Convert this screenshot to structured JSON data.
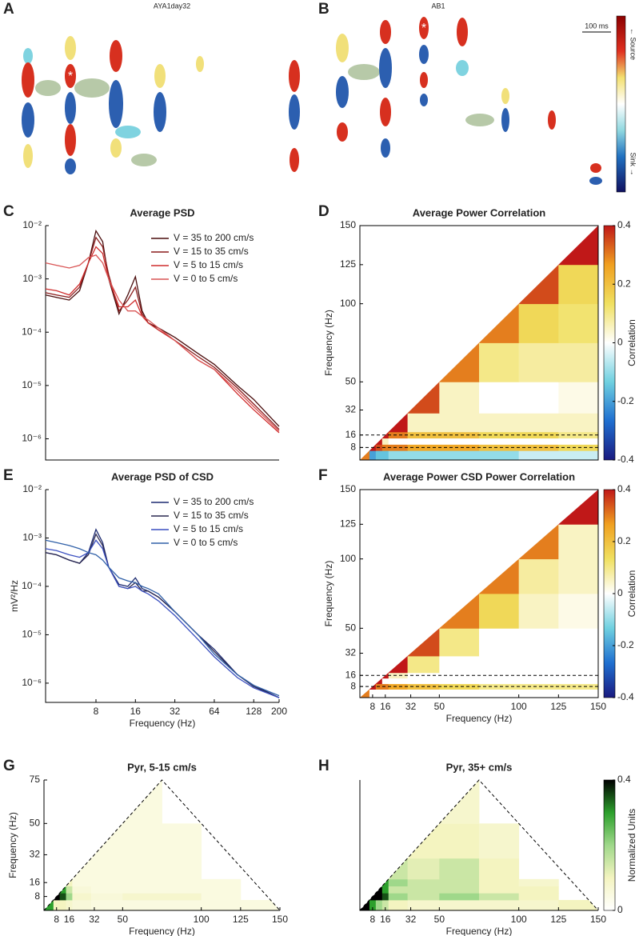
{
  "chart_data": [
    {
      "type": "csd_image",
      "panel": "A",
      "title": "AYA1day32",
      "marker": "*"
    },
    {
      "type": "csd_image",
      "panel": "B",
      "title": "AB1",
      "marker": "*",
      "scale_label": "100 ms",
      "colorbar_labels": [
        "← Source",
        "Sink →"
      ]
    },
    {
      "type": "line",
      "panel": "C",
      "title": "Average PSD",
      "xscale": "log",
      "yscale": "log",
      "xlim": [
        3.3,
        200
      ],
      "ylim": [
        4e-07,
        0.01
      ],
      "yticks": [
        {
          "value": 0.01,
          "label": "10⁻²"
        },
        {
          "value": 0.001,
          "label": "10⁻³"
        },
        {
          "value": 0.0001,
          "label": "10⁻⁴"
        },
        {
          "value": 1e-05,
          "label": "10⁻⁵"
        },
        {
          "value": 1e-06,
          "label": "10⁻⁶"
        }
      ],
      "legend": "upper right",
      "x": [
        3.3,
        4,
        5,
        6,
        7,
        8,
        9,
        10,
        12,
        14,
        16,
        18,
        20,
        24,
        32,
        48,
        64,
        96,
        128,
        200
      ],
      "series": [
        {
          "name": "V = 35 to 200 cm/s",
          "color": "#4a0d0d",
          "values": [
            0.0005,
            0.00045,
            0.0004,
            0.0006,
            0.002,
            0.008,
            0.005,
            0.001,
            0.00022,
            0.0005,
            0.0011,
            0.00025,
            0.00015,
            0.00012,
            8e-05,
            4e-05,
            2.5e-05,
            1e-05,
            5.5e-06,
            1.7e-06
          ]
        },
        {
          "name": "V = 15 to 35 cm/s",
          "color": "#8a1c1c",
          "values": [
            0.00055,
            0.0005,
            0.00045,
            0.0007,
            0.002,
            0.006,
            0.004,
            0.0012,
            0.00025,
            0.0004,
            0.0007,
            0.00022,
            0.00015,
            0.00011,
            7e-05,
            3.5e-05,
            2.2e-05,
            9e-06,
            4.5e-06,
            1.5e-06
          ]
        },
        {
          "name": "V = 5 to 15 cm/s",
          "color": "#cf2d2d",
          "values": [
            0.00065,
            0.0006,
            0.0005,
            0.0008,
            0.002,
            0.004,
            0.003,
            0.001,
            0.0003,
            0.0003,
            0.0004,
            0.0002,
            0.00015,
            0.00011,
            7e-05,
            3e-05,
            2e-05,
            7e-06,
            3.5e-06,
            1.3e-06
          ]
        },
        {
          "name": "V = 0 to 5 cm/s",
          "color": "#d95454",
          "values": [
            0.002,
            0.0018,
            0.0016,
            0.0018,
            0.0025,
            0.0028,
            0.002,
            0.001,
            0.0004,
            0.00025,
            0.00025,
            0.0002,
            0.00017,
            0.00012,
            7e-05,
            3e-05,
            2e-05,
            8e-06,
            4e-06,
            1.4e-06
          ]
        }
      ]
    },
    {
      "type": "matrix",
      "panel": "D",
      "title": "Average Power Correlation",
      "ylabel": "Frequency (Hz)",
      "mask": "below-diagonal",
      "xlim": [
        0,
        150
      ],
      "ylim": [
        0,
        150
      ],
      "yticks": [
        8,
        16,
        32,
        50,
        100,
        125,
        150
      ],
      "hlines": [
        8,
        16
      ],
      "xbins": [
        0,
        6,
        10,
        14,
        18,
        30,
        50,
        75,
        100,
        125,
        150
      ],
      "ybins": [
        0,
        6,
        10,
        14,
        18,
        30,
        50,
        75,
        100,
        125,
        150
      ],
      "z": [
        [
          0.3,
          -0.2,
          -0.15,
          -0.15,
          -0.1,
          -0.1,
          -0.1,
          -0.1,
          -0.05,
          -0.05
        ],
        [
          null,
          0.4,
          0.35,
          0.3,
          0.3,
          0.25,
          0.25,
          0.2,
          0.2,
          0.15
        ],
        [
          null,
          null,
          0.4,
          0.05,
          0,
          0,
          0,
          0,
          0,
          0
        ],
        [
          null,
          null,
          null,
          0.4,
          0.3,
          0.2,
          0.2,
          0.15,
          0.15,
          0.1
        ],
        [
          null,
          null,
          null,
          null,
          0.4,
          0.05,
          0.05,
          0.05,
          0.05,
          0.05
        ],
        [
          null,
          null,
          null,
          null,
          null,
          0.35,
          0.05,
          0,
          0,
          0.02
        ],
        [
          null,
          null,
          null,
          null,
          null,
          null,
          0.3,
          0.1,
          0.08,
          0.08
        ],
        [
          null,
          null,
          null,
          null,
          null,
          null,
          null,
          0.3,
          0.15,
          0.12
        ],
        [
          null,
          null,
          null,
          null,
          null,
          null,
          null,
          null,
          0.35,
          0.15
        ],
        [
          null,
          null,
          null,
          null,
          null,
          null,
          null,
          null,
          null,
          0.4
        ]
      ],
      "colorbar": true,
      "colorbar_label": "Correlation",
      "zlim": [
        -0.4,
        0.4
      ],
      "zticks": [
        -0.4,
        -0.2,
        0,
        0.2,
        0.4
      ],
      "colormap": [
        "#1a1a80",
        "#1f6fd0",
        "#6fd0e0",
        "#ffffff",
        "#f0e060",
        "#f0a020",
        "#c01818"
      ]
    },
    {
      "type": "line",
      "panel": "E",
      "title": "Average PSD of CSD",
      "xlabel": "Frequency (Hz)",
      "ylabel": "mV²/Hz",
      "xscale": "log",
      "yscale": "log",
      "xlim": [
        3.3,
        200
      ],
      "ylim": [
        4e-07,
        0.01
      ],
      "xticks": [
        8,
        16,
        32,
        64,
        128,
        200
      ],
      "yticks": [
        {
          "value": 0.01,
          "label": "10⁻²"
        },
        {
          "value": 0.001,
          "label": "10⁻³"
        },
        {
          "value": 0.0001,
          "label": "10⁻⁴"
        },
        {
          "value": 1e-05,
          "label": "10⁻⁵"
        },
        {
          "value": 1e-06,
          "label": "10⁻⁶"
        }
      ],
      "legend": "upper right",
      "x": [
        3.3,
        4,
        5,
        6,
        7,
        8,
        9,
        10,
        12,
        14,
        16,
        18,
        20,
        24,
        32,
        48,
        64,
        96,
        128,
        200
      ],
      "series": [
        {
          "name": "V = 35 to 200 cm/s",
          "color": "#1c2a70",
          "values": [
            0.0005,
            0.00045,
            0.00035,
            0.0003,
            0.0005,
            0.0015,
            0.0008,
            0.00025,
            0.00011,
            0.0001,
            0.00015,
            9e-05,
            8e-05,
            6e-05,
            3e-05,
            1e-05,
            5e-06,
            1.5e-06,
            9e-07,
            5e-07
          ]
        },
        {
          "name": "V = 15 to 35 cm/s",
          "color": "#2a2850",
          "values": [
            0.0005,
            0.00045,
            0.00035,
            0.0003,
            0.00045,
            0.0012,
            0.0007,
            0.00025,
            0.0001,
            9e-05,
            0.00012,
            8e-05,
            8e-05,
            6e-05,
            3e-05,
            1e-05,
            4.5e-06,
            1.5e-06,
            8.5e-07,
            5e-07
          ]
        },
        {
          "name": "V = 5 to 15 cm/s",
          "color": "#3a4fc0",
          "values": [
            0.0006,
            0.00055,
            0.00045,
            0.0004,
            0.0005,
            0.0009,
            0.0006,
            0.00025,
            0.0001,
            9e-05,
            0.0001,
            8e-05,
            7e-05,
            5e-05,
            2.5e-05,
            8e-06,
            3.5e-06,
            1.3e-06,
            8e-07,
            5e-07
          ]
        },
        {
          "name": "V = 0 to 5 cm/s",
          "color": "#3060a8",
          "values": [
            0.0009,
            0.0008,
            0.0007,
            0.0006,
            0.0005,
            0.00045,
            0.00035,
            0.00025,
            0.00015,
            0.00013,
            0.00012,
            0.0001,
            9e-05,
            7e-05,
            3e-05,
            1e-05,
            4e-06,
            1.5e-06,
            9e-07,
            5.5e-07
          ]
        }
      ]
    },
    {
      "type": "matrix",
      "panel": "F",
      "title": "Average Power CSD Power Correlation",
      "xlabel": "Frequency (Hz)",
      "ylabel": "Frequency (Hz)",
      "mask": "below-diagonal",
      "xlim": [
        0,
        150
      ],
      "ylim": [
        0,
        150
      ],
      "xticks": [
        8,
        16,
        32,
        50,
        100,
        125,
        150
      ],
      "yticks": [
        8,
        16,
        32,
        50,
        100,
        125,
        150
      ],
      "hlines": [
        8,
        16
      ],
      "xbins": [
        0,
        6,
        10,
        14,
        18,
        30,
        50,
        75,
        100,
        125,
        150
      ],
      "ybins": [
        0,
        6,
        10,
        14,
        18,
        30,
        50,
        75,
        100,
        125,
        150
      ],
      "z": [
        [
          0.3,
          0,
          0,
          0,
          0,
          0,
          0,
          0,
          0,
          0
        ],
        [
          null,
          0.4,
          0.3,
          0.3,
          0.25,
          0.2,
          0.15,
          0.1,
          0.1,
          0.1
        ],
        [
          null,
          null,
          0.4,
          0,
          0,
          0,
          0,
          0,
          0,
          0
        ],
        [
          null,
          null,
          null,
          0.4,
          0.05,
          0,
          0,
          0,
          0,
          0
        ],
        [
          null,
          null,
          null,
          null,
          0.4,
          0.1,
          0,
          0,
          0,
          0
        ],
        [
          null,
          null,
          null,
          null,
          null,
          0.35,
          0.1,
          0,
          0,
          0
        ],
        [
          null,
          null,
          null,
          null,
          null,
          null,
          0.3,
          0.15,
          0.05,
          0.02
        ],
        [
          null,
          null,
          null,
          null,
          null,
          null,
          null,
          0.3,
          0.08,
          0.05
        ],
        [
          null,
          null,
          null,
          null,
          null,
          null,
          null,
          null,
          0.3,
          0.05
        ],
        [
          null,
          null,
          null,
          null,
          null,
          null,
          null,
          null,
          null,
          0.4
        ]
      ],
      "colorbar": true,
      "colorbar_label": "Correlation",
      "zlim": [
        -0.4,
        0.4
      ],
      "zticks": [
        -0.4,
        -0.2,
        0,
        0.2,
        0.4
      ],
      "colormap": [
        "#1a1a80",
        "#1f6fd0",
        "#6fd0e0",
        "#ffffff",
        "#f0e060",
        "#f0a020",
        "#c01818"
      ]
    },
    {
      "type": "matrix",
      "panel": "G",
      "title": "Pyr, 5-15 cm/s",
      "xlabel": "Frequency (Hz)",
      "ylabel": "Frequency (Hz)",
      "mask": "pyramid",
      "xlim": [
        0,
        150
      ],
      "ylim": [
        0,
        75
      ],
      "xticks": [
        8,
        16,
        32,
        50,
        100,
        125,
        150
      ],
      "yticks": [
        8,
        16,
        32,
        50,
        75
      ],
      "xbins": [
        0,
        6,
        10,
        14,
        18,
        30,
        50,
        75,
        100,
        125,
        150
      ],
      "ybins": [
        0,
        6,
        10,
        14,
        18,
        30,
        50,
        75
      ],
      "z": [
        [
          0.3,
          0.1,
          0.1,
          0.08,
          0.06,
          0.05,
          0.05,
          0.05,
          0.05,
          0.05
        ],
        [
          null,
          0.4,
          0.35,
          0.2,
          0.08,
          0.06,
          0.08,
          0.08,
          0.05,
          null
        ],
        [
          null,
          null,
          0.3,
          0.15,
          0.06,
          0.05,
          0.05,
          0.05,
          0.05,
          null
        ],
        [
          null,
          null,
          null,
          0.1,
          0.05,
          0.05,
          0.05,
          0.05,
          0.05,
          null
        ],
        [
          null,
          null,
          null,
          null,
          0.05,
          0.05,
          0.05,
          0.05,
          null,
          null
        ],
        [
          null,
          null,
          null,
          null,
          null,
          0.05,
          0.05,
          0.05,
          null,
          null
        ],
        [
          null,
          null,
          null,
          null,
          null,
          null,
          0.05,
          null,
          null,
          null
        ]
      ],
      "colorbar": false,
      "zlim": [
        0,
        0.4
      ],
      "colormap": [
        "#ffffff",
        "#f4f4c0",
        "#9fd88a",
        "#2ca02c",
        "#000000"
      ]
    },
    {
      "type": "matrix",
      "panel": "H",
      "title": "Pyr, 35+ cm/s",
      "xlabel": "Frequency (Hz)",
      "mask": "pyramid",
      "xlim": [
        0,
        150
      ],
      "ylim": [
        0,
        75
      ],
      "xticks": [
        8,
        16,
        32,
        50,
        100,
        125,
        150
      ],
      "xbins": [
        0,
        6,
        10,
        14,
        18,
        30,
        50,
        75,
        100,
        125,
        150
      ],
      "ybins": [
        0,
        6,
        10,
        14,
        18,
        30,
        50,
        75
      ],
      "z": [
        [
          0.4,
          0.3,
          0.2,
          0.15,
          0.1,
          0.08,
          0.08,
          0.08,
          0.08,
          0.1
        ],
        [
          null,
          0.4,
          0.4,
          0.35,
          0.2,
          0.15,
          0.2,
          0.15,
          0.1,
          null
        ],
        [
          null,
          null,
          0.4,
          0.3,
          0.15,
          0.15,
          0.15,
          0.1,
          0.1,
          null
        ],
        [
          null,
          null,
          null,
          0.3,
          0.2,
          0.15,
          0.15,
          0.1,
          0.08,
          null
        ],
        [
          null,
          null,
          null,
          null,
          0.15,
          0.12,
          0.15,
          0.1,
          null,
          null
        ],
        [
          null,
          null,
          null,
          null,
          null,
          0.1,
          0.1,
          0.08,
          null,
          null
        ],
        [
          null,
          null,
          null,
          null,
          null,
          null,
          0.08,
          null,
          null,
          null
        ]
      ],
      "colorbar": true,
      "colorbar_label": "Normalized Units",
      "zlim": [
        0,
        0.4
      ],
      "zticks": [
        0,
        0.4
      ],
      "colormap": [
        "#ffffff",
        "#f4f4c0",
        "#9fd88a",
        "#2ca02c",
        "#000000"
      ]
    }
  ]
}
